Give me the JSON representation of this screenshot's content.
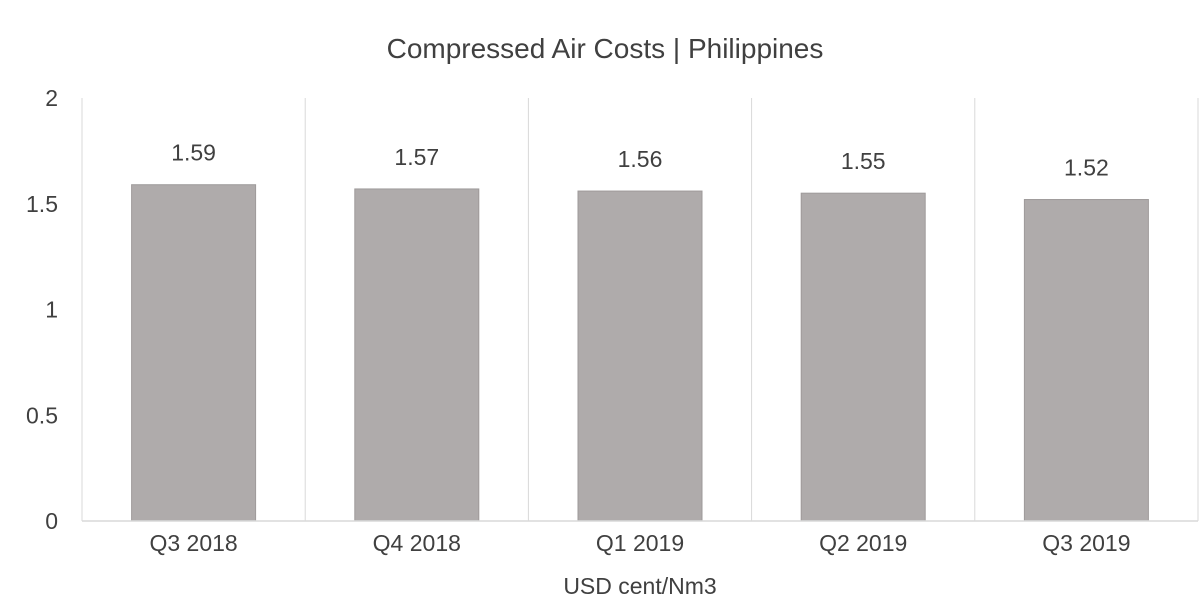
{
  "chart_data": {
    "type": "bar",
    "title": "Compressed Air Costs | Philippines",
    "xlabel": "USD cent/Nm3",
    "ylabel": "",
    "categories": [
      "Q3 2018",
      "Q4 2018",
      "Q1 2019",
      "Q2 2019",
      "Q3 2019"
    ],
    "values": [
      1.59,
      1.57,
      1.56,
      1.55,
      1.52
    ],
    "data_labels": [
      "1.59",
      "1.57",
      "1.56",
      "1.55",
      "1.52"
    ],
    "ylim": [
      0,
      2
    ],
    "yticks": [
      "0",
      "0.5",
      "1",
      "1.5",
      "2"
    ],
    "grid": "vertical category separators",
    "legend": "none",
    "colors": {
      "bar": "#afabab",
      "text": "#404040",
      "grid": "#d9d9d9"
    }
  }
}
